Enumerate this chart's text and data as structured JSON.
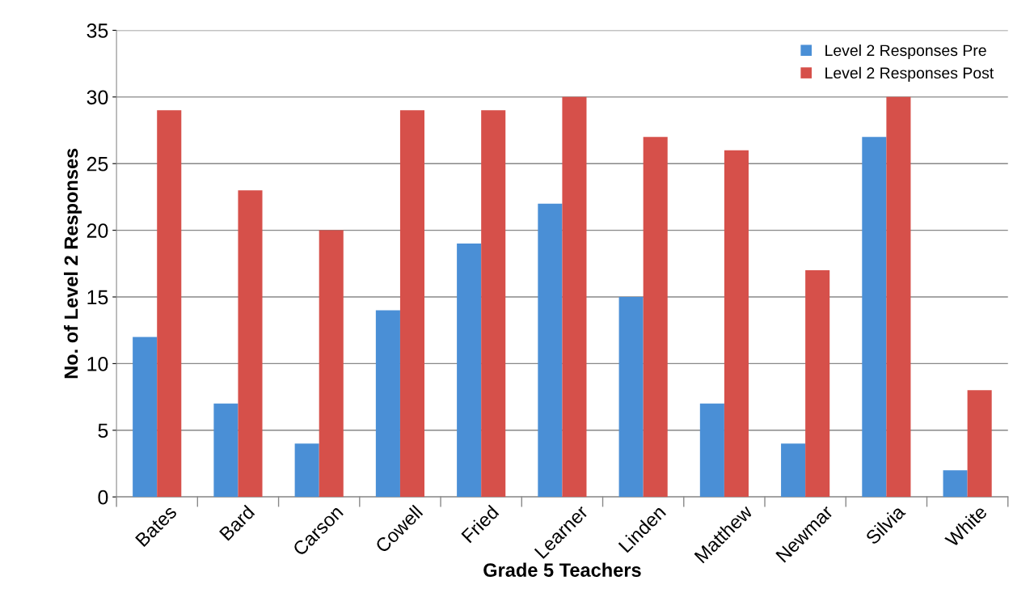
{
  "chart_data": {
    "type": "bar",
    "categories": [
      "Bates",
      "Bard",
      "Carson",
      "Cowell",
      "Fried",
      "Learner",
      "Linden",
      "Matthew",
      "Newmar",
      "Silvia",
      "White"
    ],
    "series": [
      {
        "name": "Level 2 Responses Pre",
        "color": "#4a8fd6",
        "values": [
          12,
          7,
          4,
          14,
          19,
          22,
          15,
          7,
          4,
          27,
          2
        ]
      },
      {
        "name": "Level 2 Responses Post",
        "color": "#d6504a",
        "values": [
          29,
          23,
          20,
          29,
          29,
          30,
          27,
          26,
          17,
          30,
          8
        ]
      }
    ],
    "xlabel": "Grade 5 Teachers",
    "ylabel": "No. of Level 2 Responses",
    "ylim": [
      0,
      35
    ],
    "yticks": [
      0,
      5,
      10,
      15,
      20,
      25,
      30,
      35
    ],
    "grid": "y",
    "legend": "top right"
  }
}
